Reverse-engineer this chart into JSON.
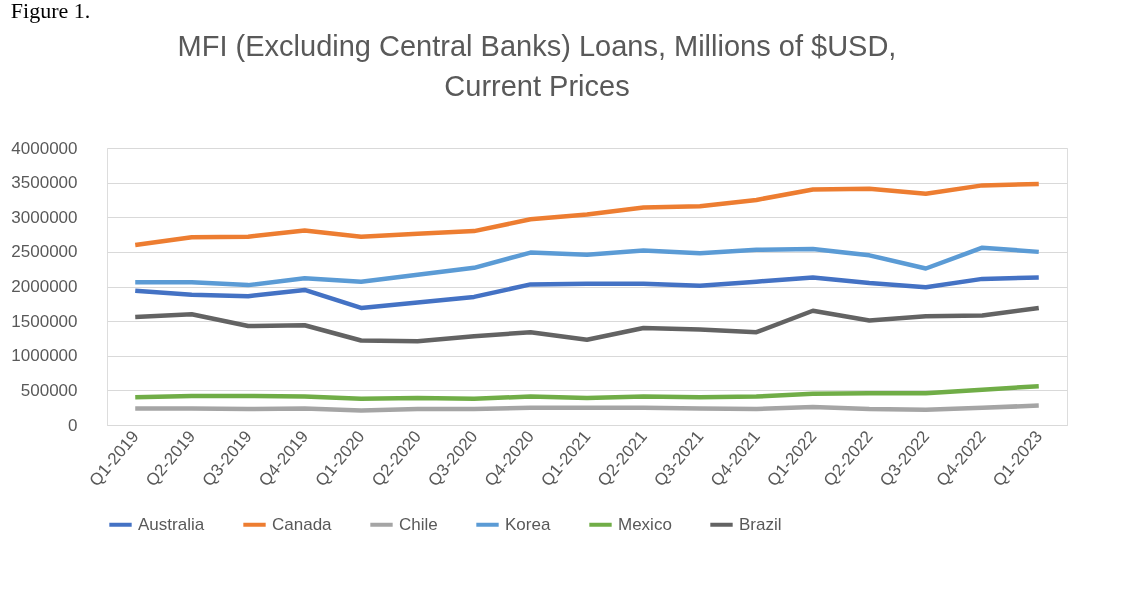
{
  "chart_data": {
    "type": "line",
    "title": [
      "MFI (Excluding Central Banks) Loans, Millions of $USD,",
      "Current Prices"
    ],
    "annotations": [
      "Figure 1."
    ],
    "categories": [
      "Q1-2019",
      "Q2-2019",
      "Q3-2019",
      "Q4-2019",
      "Q1-2020",
      "Q2-2020",
      "Q3-2020",
      "Q4-2020",
      "Q1-2021",
      "Q2-2021",
      "Q3-2021",
      "Q4-2021",
      "Q1-2022",
      "Q2-2022",
      "Q3-2022",
      "Q4-2022",
      "Q1-2023"
    ],
    "series": [
      {
        "name": "Australia",
        "color": "#4472c4",
        "values": [
          1940000,
          1880000,
          1860000,
          1950000,
          1690000,
          1770000,
          1850000,
          2030000,
          2040000,
          2040000,
          2010000,
          2070000,
          2130000,
          2050000,
          1990000,
          2110000,
          2130000
        ]
      },
      {
        "name": "Canada",
        "color": "#ed7d31",
        "values": [
          2600000,
          2710000,
          2720000,
          2810000,
          2720000,
          2760000,
          2800000,
          2970000,
          3040000,
          3140000,
          3160000,
          3250000,
          3400000,
          3410000,
          3340000,
          3460000,
          3480000
        ]
      },
      {
        "name": "Chile",
        "color": "#a5a5a5",
        "values": [
          240000,
          240000,
          230000,
          240000,
          210000,
          230000,
          230000,
          250000,
          250000,
          250000,
          240000,
          230000,
          260000,
          230000,
          220000,
          250000,
          280000
        ]
      },
      {
        "name": "Korea",
        "color": "#5b9bd5",
        "values": [
          2060000,
          2060000,
          2020000,
          2120000,
          2070000,
          2170000,
          2270000,
          2490000,
          2460000,
          2520000,
          2480000,
          2530000,
          2540000,
          2450000,
          2260000,
          2560000,
          2500000
        ]
      },
      {
        "name": "Mexico",
        "color": "#70ad47",
        "values": [
          400000,
          420000,
          420000,
          410000,
          380000,
          390000,
          380000,
          410000,
          390000,
          410000,
          400000,
          410000,
          450000,
          460000,
          460000,
          510000,
          560000
        ]
      },
      {
        "name": "Brazil",
        "color": "#636363",
        "values": [
          1560000,
          1600000,
          1430000,
          1440000,
          1220000,
          1210000,
          1280000,
          1340000,
          1230000,
          1400000,
          1380000,
          1340000,
          1650000,
          1510000,
          1570000,
          1580000,
          1690000
        ]
      }
    ],
    "ylim": [
      0,
      4000000
    ],
    "yticks": [
      0,
      500000,
      1000000,
      1500000,
      2000000,
      2500000,
      3000000,
      3500000,
      4000000
    ],
    "grid": "y",
    "legend": "bottom",
    "marker": "none",
    "line_style": "solid"
  }
}
